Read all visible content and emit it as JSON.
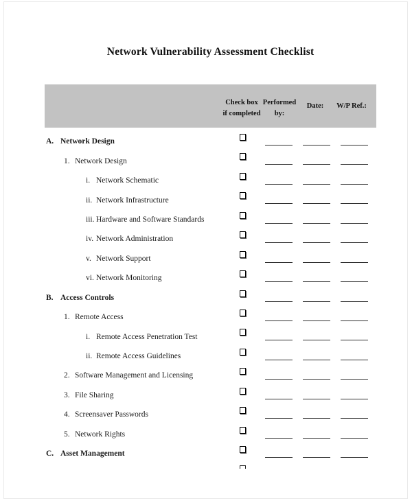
{
  "document": {
    "title": "Network Vulnerability Assessment Checklist"
  },
  "table": {
    "columns": [
      {
        "id": "checkbox",
        "line1": "Check box",
        "line2": "if completed"
      },
      {
        "id": "performed_by",
        "line1": "Performed",
        "line2": "by:"
      },
      {
        "id": "date",
        "line1": "Date:",
        "line2": ""
      },
      {
        "id": "wp_ref",
        "line1": "W/P Ref.:",
        "line2": ""
      }
    ],
    "rows": [
      {
        "marker": "A.",
        "label": "Network Design",
        "level": 0,
        "bold": true,
        "checkbox": "unchecked",
        "fields": {
          "performed_by": "",
          "date": "",
          "wp_ref": ""
        }
      },
      {
        "marker": "1.",
        "label": "Network Design",
        "level": 1,
        "bold": false,
        "checkbox": "unchecked",
        "fields": {
          "performed_by": "",
          "date": "",
          "wp_ref": ""
        }
      },
      {
        "marker": "i.",
        "label": "Network Schematic",
        "level": 2,
        "bold": false,
        "checkbox": "unchecked",
        "fields": {
          "performed_by": "",
          "date": "",
          "wp_ref": ""
        }
      },
      {
        "marker": "ii.",
        "label": "Network Infrastructure",
        "level": 2,
        "bold": false,
        "checkbox": "unchecked",
        "fields": {
          "performed_by": "",
          "date": "",
          "wp_ref": ""
        }
      },
      {
        "marker": "iii.",
        "label": "Hardware and Software Standards",
        "level": 2,
        "bold": false,
        "checkbox": "unchecked",
        "fields": {
          "performed_by": "",
          "date": "",
          "wp_ref": ""
        }
      },
      {
        "marker": "iv.",
        "label": "Network Administration",
        "level": 2,
        "bold": false,
        "checkbox": "unchecked",
        "fields": {
          "performed_by": "",
          "date": "",
          "wp_ref": ""
        }
      },
      {
        "marker": "v.",
        "label": "Network Support",
        "level": 2,
        "bold": false,
        "checkbox": "unchecked",
        "fields": {
          "performed_by": "",
          "date": "",
          "wp_ref": ""
        }
      },
      {
        "marker": "vi.",
        "label": "Network Monitoring",
        "level": 2,
        "bold": false,
        "checkbox": "unchecked",
        "fields": {
          "performed_by": "",
          "date": "",
          "wp_ref": ""
        }
      },
      {
        "marker": "B.",
        "label": "Access Controls",
        "level": 0,
        "bold": true,
        "checkbox": "unchecked",
        "fields": {
          "performed_by": "",
          "date": "",
          "wp_ref": ""
        }
      },
      {
        "marker": "1.",
        "label": "Remote Access",
        "level": 1,
        "bold": false,
        "checkbox": "unchecked",
        "fields": {
          "performed_by": "",
          "date": "",
          "wp_ref": ""
        }
      },
      {
        "marker": "i.",
        "label": "Remote Access Penetration Test",
        "level": 2,
        "bold": false,
        "checkbox": "unchecked",
        "fields": {
          "performed_by": "",
          "date": "",
          "wp_ref": ""
        }
      },
      {
        "marker": "ii.",
        "label": "Remote Access Guidelines",
        "level": 2,
        "bold": false,
        "checkbox": "unchecked",
        "fields": {
          "performed_by": "",
          "date": "",
          "wp_ref": ""
        }
      },
      {
        "marker": "2.",
        "label": "Software Management and Licensing",
        "level": 1,
        "bold": false,
        "checkbox": "unchecked",
        "fields": {
          "performed_by": "",
          "date": "",
          "wp_ref": ""
        }
      },
      {
        "marker": "3.",
        "label": "File Sharing",
        "level": 1,
        "bold": false,
        "checkbox": "unchecked",
        "fields": {
          "performed_by": "",
          "date": "",
          "wp_ref": ""
        }
      },
      {
        "marker": "4.",
        "label": "Screensaver Passwords",
        "level": 1,
        "bold": false,
        "checkbox": "unchecked",
        "fields": {
          "performed_by": "",
          "date": "",
          "wp_ref": ""
        }
      },
      {
        "marker": "5.",
        "label": "Network Rights",
        "level": 1,
        "bold": false,
        "checkbox": "unchecked",
        "fields": {
          "performed_by": "",
          "date": "",
          "wp_ref": ""
        }
      },
      {
        "marker": "C.",
        "label": "Asset Management",
        "level": 0,
        "bold": true,
        "checkbox": "unchecked",
        "fields": {
          "performed_by": "",
          "date": "",
          "wp_ref": ""
        }
      },
      {
        "marker": "",
        "label": "",
        "level": 0,
        "bold": false,
        "checkbox": "unchecked",
        "partial": true
      }
    ]
  },
  "colors": {
    "header_bar": "#c2c2c2",
    "text": "#1a1a1a",
    "field_line": "#2e2e2e",
    "page_border": "#e9e9e9"
  }
}
